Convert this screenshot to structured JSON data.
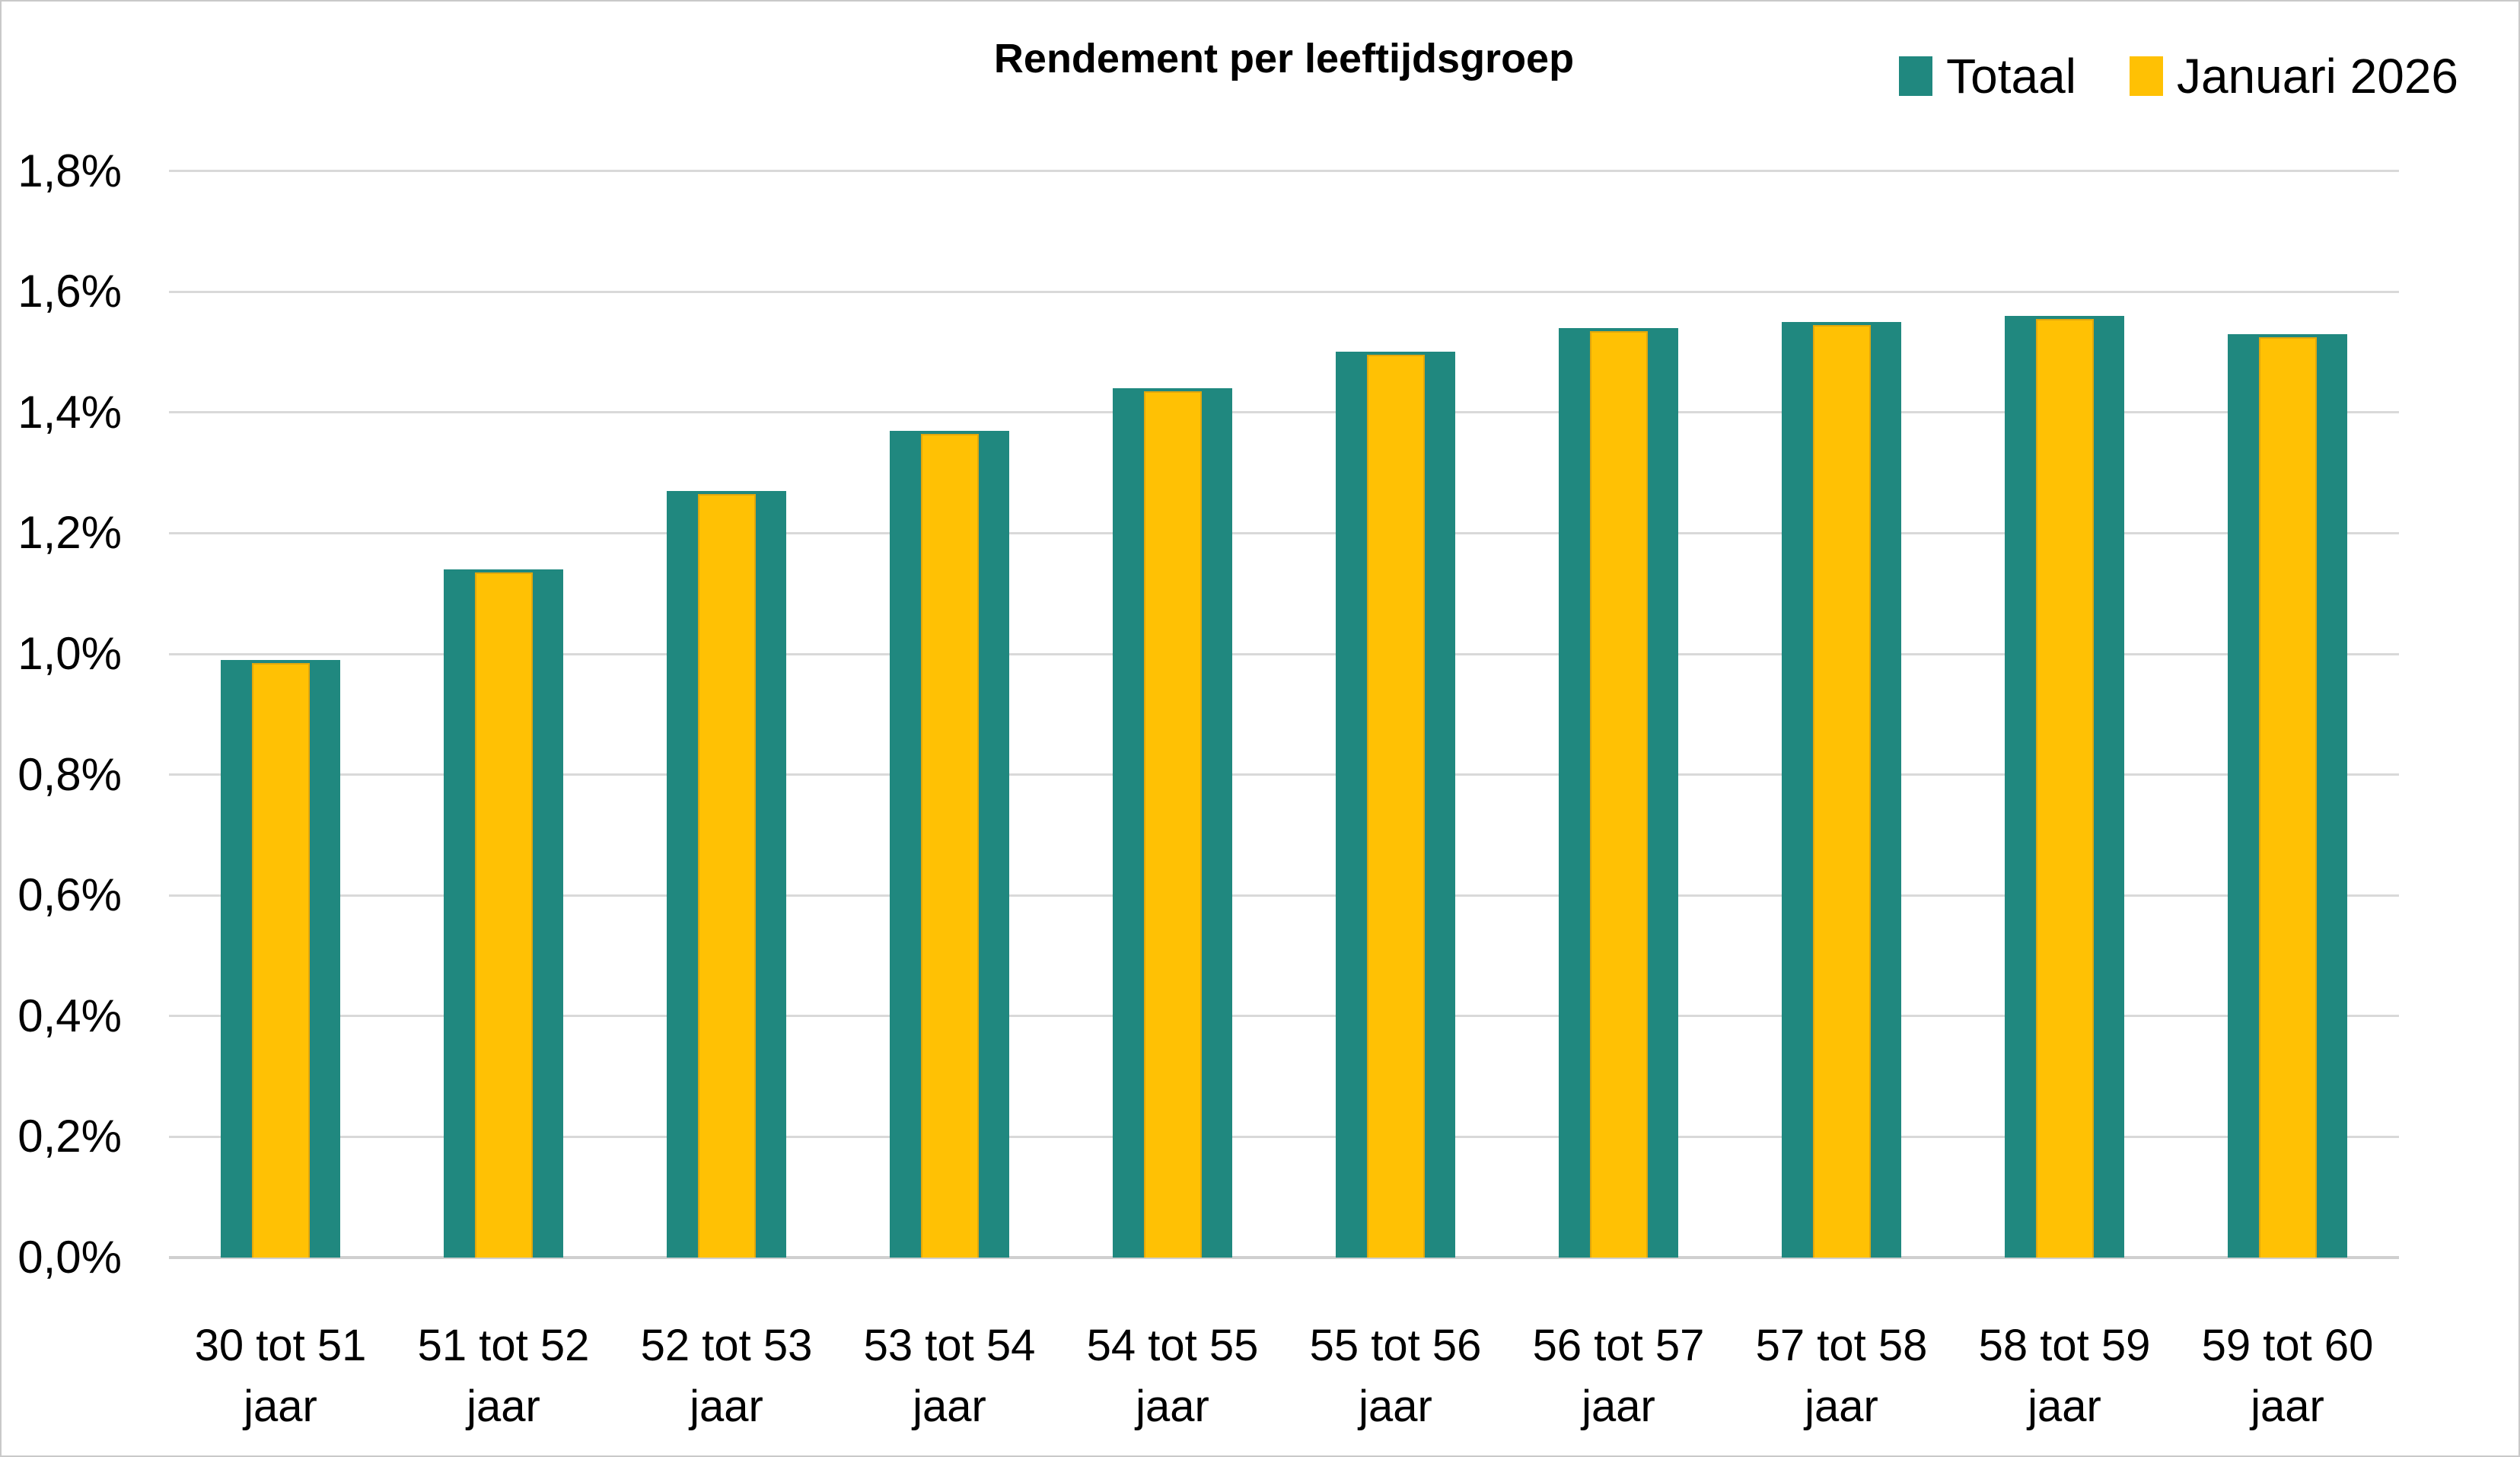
{
  "header": {
    "title": "Rendement per leeftijdsgroep"
  },
  "legend": {
    "position": "top-right",
    "items": [
      {
        "label": "Totaal",
        "color": "#20887F"
      },
      {
        "label": "Januari 2026",
        "color": "#FFC104",
        "outline": "#E2A70C"
      }
    ]
  },
  "chart_data": {
    "type": "bar",
    "title": "Rendement per leeftijdsgroep",
    "categories": [
      "30 tot 51 jaar",
      "51 tot 52 jaar",
      "52 tot 53 jaar",
      "53 tot 54 jaar",
      "54 tot 55 jaar",
      "55 tot 56 jaar",
      "56 tot 57 jaar",
      "57 tot 58 jaar",
      "58 tot 59 jaar",
      "59 tot 60 jaar"
    ],
    "series": [
      {
        "name": "Totaal",
        "color": "#20887F",
        "values": [
          0.99,
          1.14,
          1.27,
          1.37,
          1.44,
          1.5,
          1.54,
          1.55,
          1.56,
          1.53
        ]
      },
      {
        "name": "Januari 2026",
        "color": "#FFC104",
        "outline": "#E2A70C",
        "values": [
          0.99,
          1.14,
          1.27,
          1.37,
          1.44,
          1.5,
          1.54,
          1.55,
          1.56,
          1.53
        ]
      }
    ],
    "unit": "%",
    "value_format": "comma_decimal_percent",
    "xlabel": "",
    "ylabel": "",
    "ylim": [
      0,
      1.8
    ],
    "ytick_step": 0.2,
    "yticks": [
      "0,0%",
      "0,2%",
      "0,4%",
      "0,6%",
      "0,8%",
      "1,0%",
      "1,2%",
      "1,4%",
      "1,6%",
      "1,8%"
    ],
    "grid": "horizontal",
    "gridline_color": "#D9D9D9",
    "axisline_color": "#CFCFCF",
    "legend_position": "top-right",
    "bar_layout": "januari-bar-overlaid-centered-inside-totaal-bar"
  }
}
